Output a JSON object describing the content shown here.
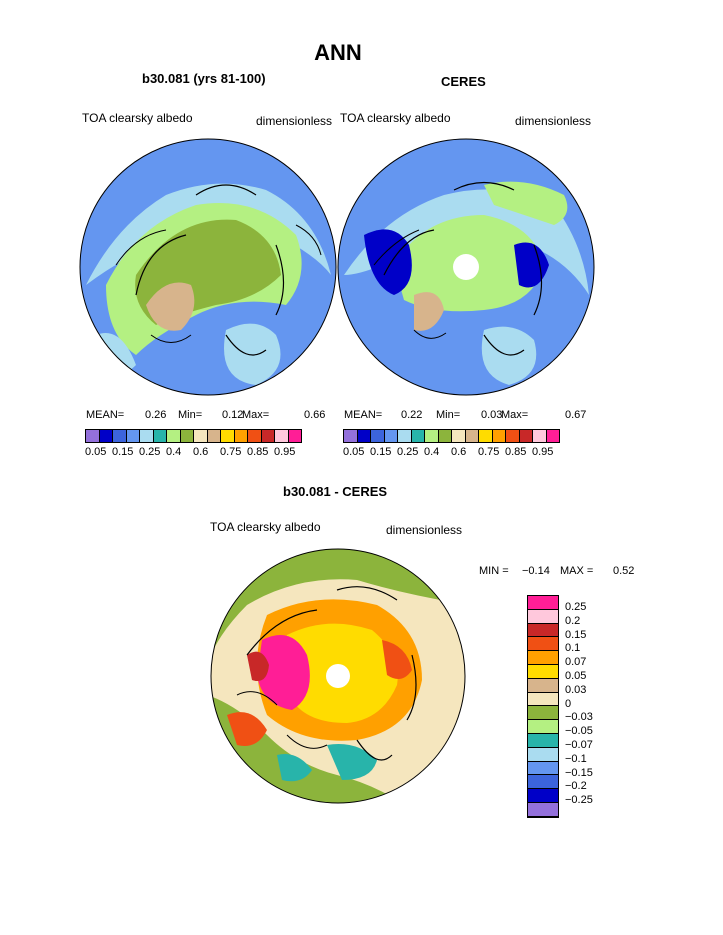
{
  "title": "ANN",
  "panels": [
    {
      "subtitle": "b30.081 (yrs 81-100)",
      "left_label": "TOA clearsky albedo",
      "right_label": "dimensionless",
      "stats": {
        "mean_label": "MEAN=",
        "mean": "0.26",
        "min_label": "Min=",
        "min": "0.12",
        "max_label": "Max=",
        "max": "0.66"
      }
    },
    {
      "subtitle": "CERES",
      "left_label": "TOA clearsky albedo",
      "right_label": "dimensionless",
      "stats": {
        "mean_label": "MEAN=",
        "mean": "0.22",
        "min_label": "Min=",
        "min": "0.03",
        "max_label": "Max=",
        "max": "0.67"
      }
    },
    {
      "subtitle": "b30.081 - CERES",
      "left_label": "TOA clearsky albedo",
      "right_label": "dimensionless",
      "stats": {
        "min_label": "MIN =",
        "min": "−0.14",
        "max_label": "MAX =",
        "max": "0.52"
      }
    }
  ],
  "colorbar_top": {
    "colors": [
      "#9370db",
      "#0000c8",
      "#3c64dc",
      "#6496f0",
      "#aadcf0",
      "#28b4aa",
      "#b4f082",
      "#8cb43c",
      "#f5e6be",
      "#d7b48c",
      "#ffdc00",
      "#ffa000",
      "#f05014",
      "#c82828",
      "#ffc8dc",
      "#ff1e96"
    ],
    "labels": [
      "0.05",
      "0.15",
      "0.25",
      "0.4",
      "0.6",
      "0.75",
      "0.85",
      "0.95"
    ]
  },
  "colorbar_diff": {
    "colors": [
      "#ff1e96",
      "#ffc8dc",
      "#c82828",
      "#f05014",
      "#ffa000",
      "#ffdc00",
      "#d7b48c",
      "#f5e6be",
      "#8cb43c",
      "#b4f082",
      "#28b4aa",
      "#aadcf0",
      "#6496f0",
      "#3c64dc",
      "#0000c8",
      "#9370db"
    ],
    "labels": [
      "0.25",
      "0.2",
      "0.15",
      "0.1",
      "0.07",
      "0.05",
      "0.03",
      "0",
      "−0.03",
      "−0.05",
      "−0.07",
      "−0.1",
      "−0.15",
      "−0.2",
      "−0.25"
    ]
  }
}
